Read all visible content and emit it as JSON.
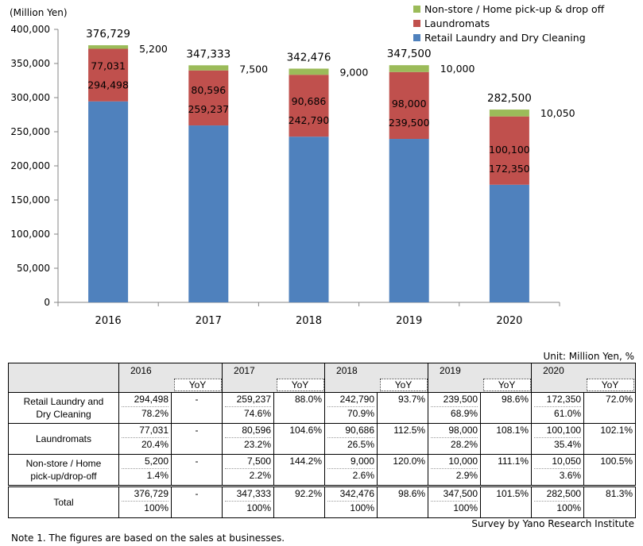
{
  "chart_data": {
    "type": "bar",
    "stacked": true,
    "y_unit_label": "(Million Yen)",
    "categories": [
      "2016",
      "2017",
      "2018",
      "2019",
      "2020"
    ],
    "ylim": [
      0,
      400000
    ],
    "y_ticks": [
      0,
      50000,
      100000,
      150000,
      200000,
      250000,
      300000,
      350000,
      400000
    ],
    "y_tick_labels": [
      "0",
      "50,000",
      "100,000",
      "150,000",
      "200,000",
      "250,000",
      "300,000",
      "350,000",
      "400,000"
    ],
    "legend_position": "top-right",
    "series": [
      {
        "name": "Retail Laundry and Dry Cleaning",
        "color": "#4f81bd",
        "values": [
          294498,
          259237,
          242790,
          239500,
          172350
        ],
        "labels": [
          "294,498",
          "259,237",
          "242,790",
          "239,500",
          "172,350"
        ]
      },
      {
        "name": "Laundromats",
        "color": "#c0504d",
        "values": [
          77031,
          80596,
          90686,
          98000,
          100100
        ],
        "labels": [
          "77,031",
          "80,596",
          "90,686",
          "98,000",
          "100,100"
        ]
      },
      {
        "name": "Non-store / Home pick-up & drop off",
        "color": "#9bbb59",
        "values": [
          5200,
          7500,
          9000,
          10000,
          10050
        ],
        "labels": [
          "5,200",
          "7,500",
          "9,000",
          "10,000",
          "10,050"
        ]
      }
    ],
    "totals": [
      376729,
      347333,
      342476,
      347500,
      282500
    ],
    "total_labels": [
      "376,729",
      "347,333",
      "342,476",
      "347,500",
      "282,500"
    ]
  },
  "table": {
    "unit_note": "Unit: Million Yen, %",
    "years": [
      "2016",
      "2017",
      "2018",
      "2019",
      "2020"
    ],
    "yoy_label": "YoY",
    "rows": [
      {
        "label_line1": "Retail Laundry and",
        "label_line2": "Dry Cleaning",
        "values": [
          "294,498",
          "259,237",
          "242,790",
          "239,500",
          "172,350"
        ],
        "shares": [
          "78.2%",
          "74.6%",
          "70.9%",
          "68.9%",
          "61.0%"
        ],
        "yoy": [
          "-",
          "88.0%",
          "93.7%",
          "98.6%",
          "72.0%"
        ]
      },
      {
        "label_line1": "Laundromats",
        "label_line2": "",
        "values": [
          "77,031",
          "80,596",
          "90,686",
          "98,000",
          "100,100"
        ],
        "shares": [
          "20.4%",
          "23.2%",
          "26.5%",
          "28.2%",
          "35.4%"
        ],
        "yoy": [
          "-",
          "104.6%",
          "112.5%",
          "108.1%",
          "102.1%"
        ]
      },
      {
        "label_line1": "Non-store / Home",
        "label_line2": "pick-up/drop-off",
        "values": [
          "5,200",
          "7,500",
          "9,000",
          "10,000",
          "10,050"
        ],
        "shares": [
          "1.4%",
          "2.2%",
          "2.6%",
          "2.9%",
          "3.6%"
        ],
        "yoy": [
          "-",
          "144.2%",
          "120.0%",
          "111.1%",
          "100.5%"
        ]
      },
      {
        "label_line1": "Total",
        "label_line2": "",
        "values": [
          "376,729",
          "347,333",
          "342,476",
          "347,500",
          "282,500"
        ],
        "shares": [
          "100%",
          "100%",
          "100%",
          "100%",
          "100%"
        ],
        "yoy": [
          "-",
          "92.2%",
          "98.6%",
          "101.5%",
          "81.3%"
        ]
      }
    ]
  },
  "source": "Survey by Yano Research Institute",
  "note": "Note 1.  The figures are based on the sales at businesses."
}
